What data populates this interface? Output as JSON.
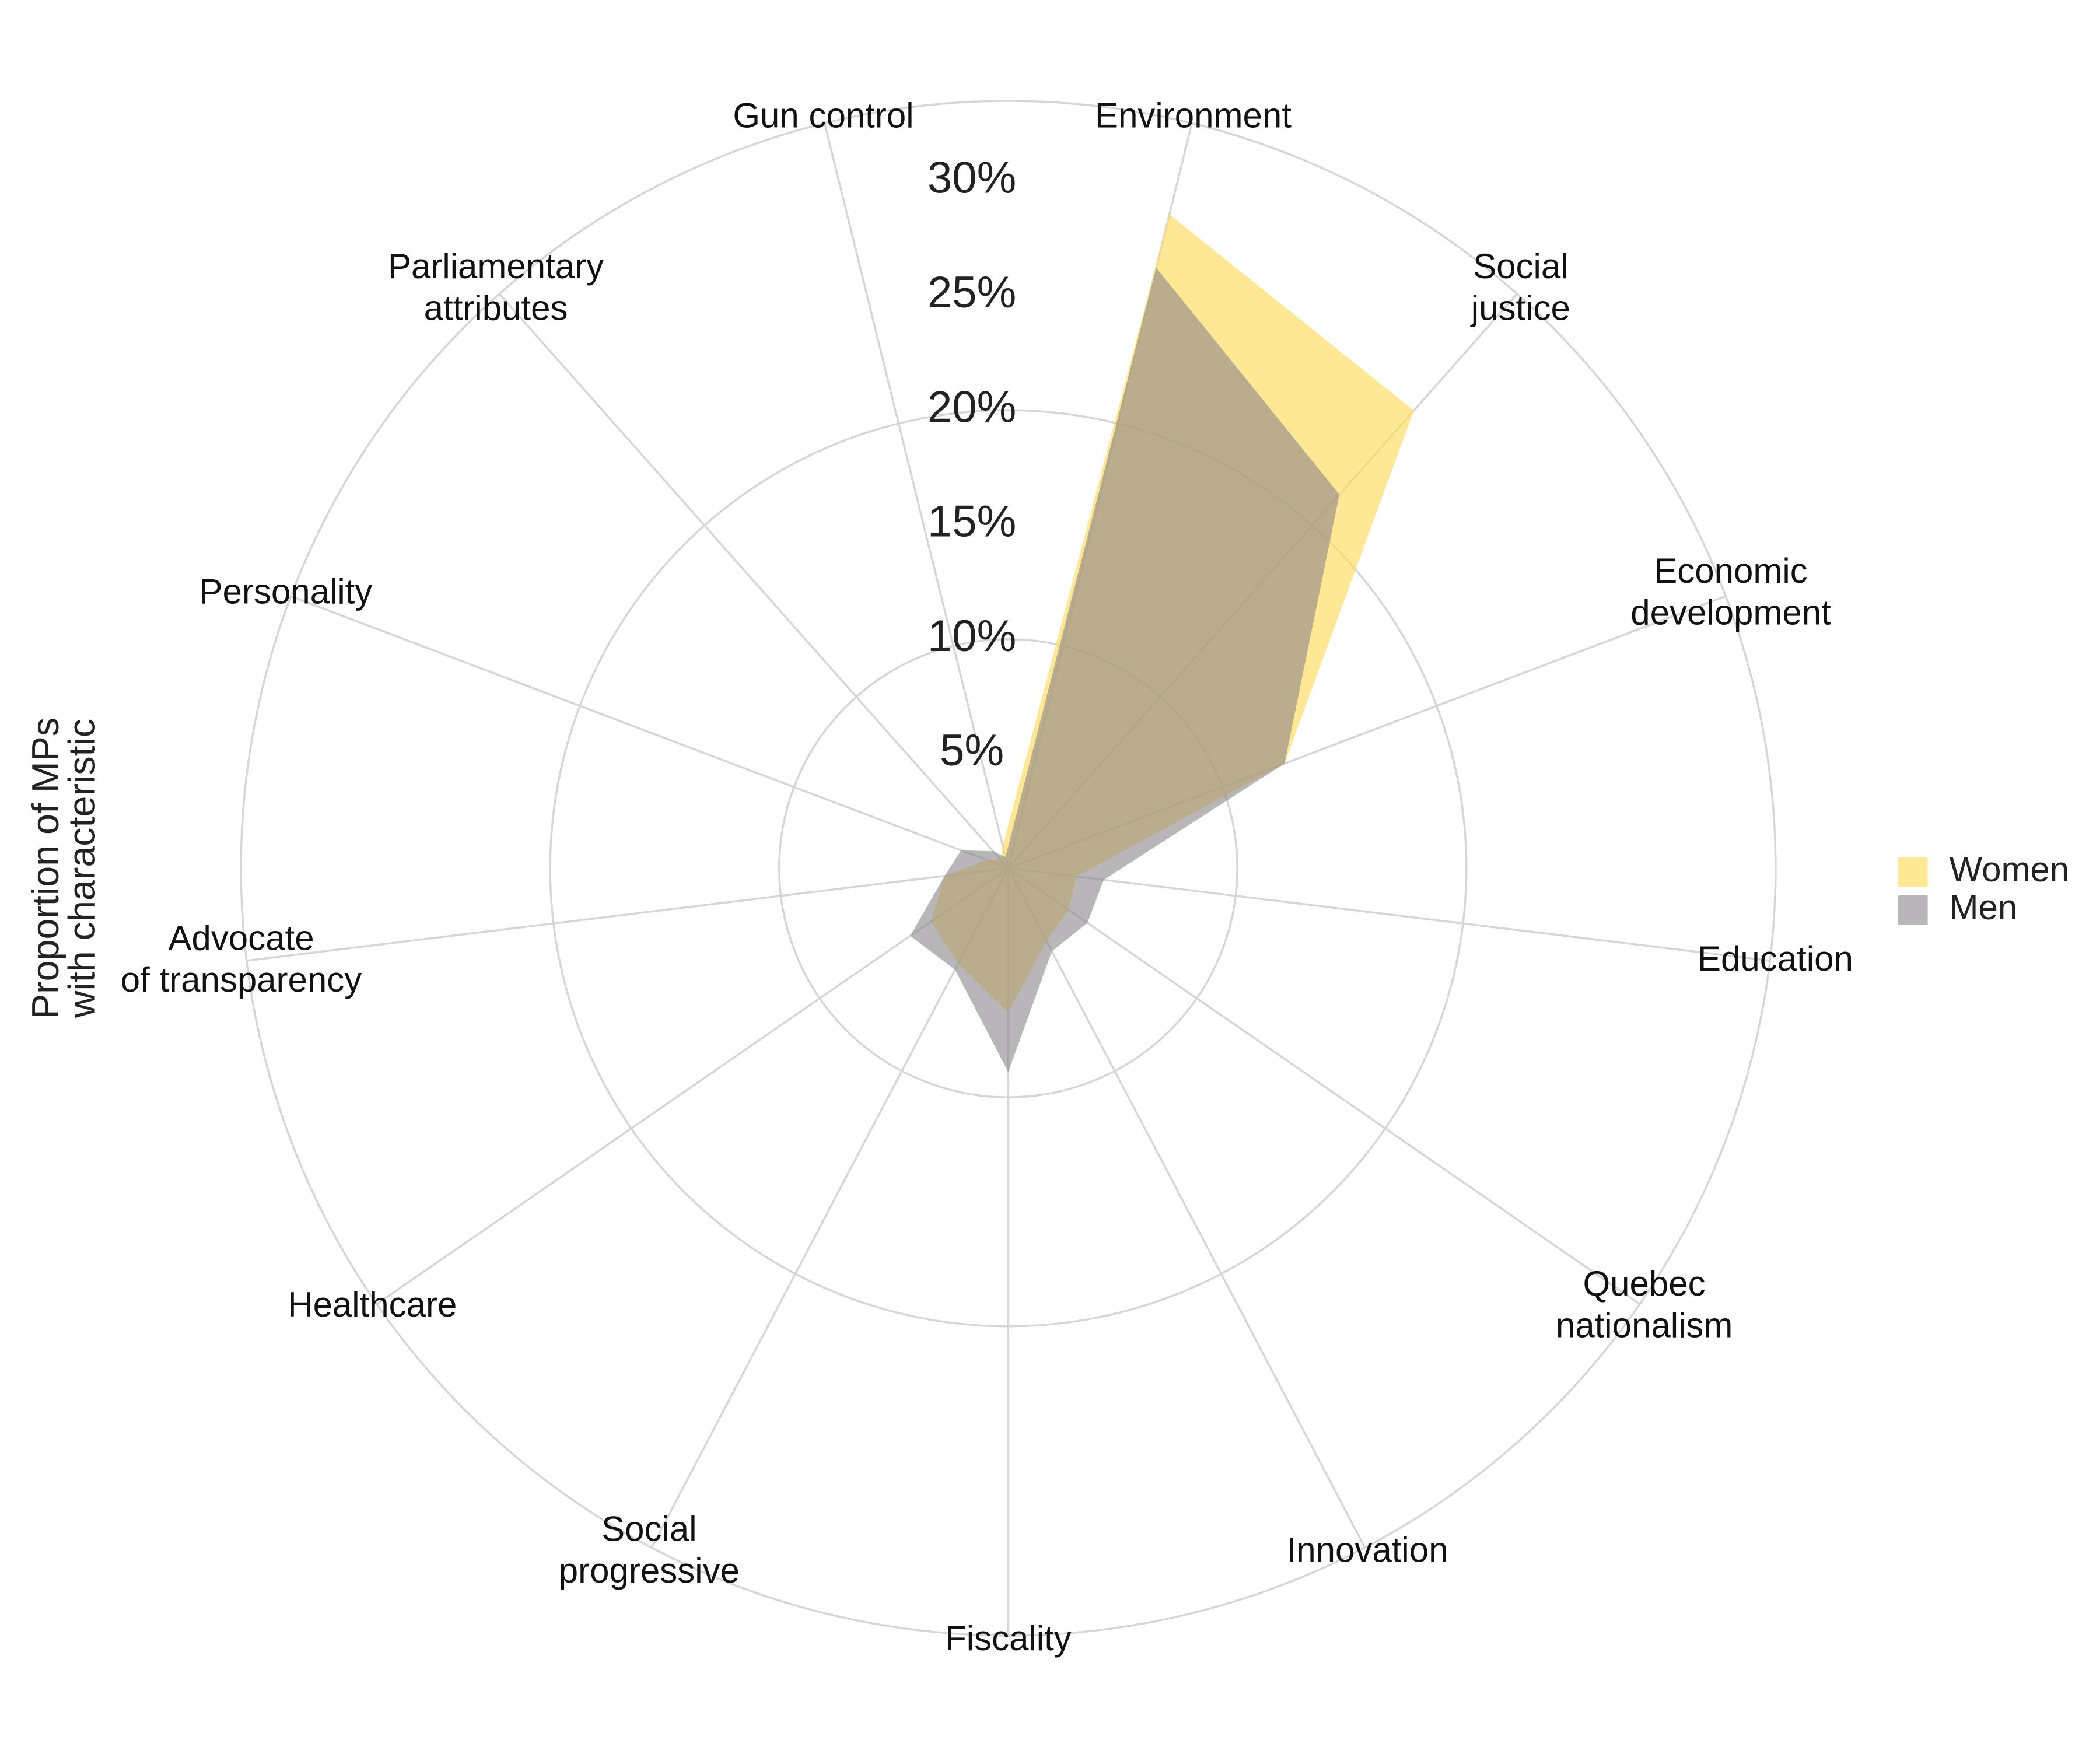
{
  "chart_data": {
    "type": "radar",
    "y_label": [
      "Proportion of MPs",
      "with characteristic"
    ],
    "categories": [
      "Environment",
      "Social\njustice",
      "Economic\ndevelopment",
      "Education",
      "Quebec\nnationalism",
      "Innovation",
      "Fiscality",
      "Social\nprogressive",
      "Healthcare",
      "Advocate\nof transparency",
      "Personality",
      "Parliamentary\nattributes",
      "Gun control"
    ],
    "series": [
      {
        "name": "Women",
        "color": "#fddc5c",
        "values": [
          29.4,
          26.7,
          12.9,
          3.0,
          3.2,
          3.6,
          6.3,
          4.7,
          4.1,
          2.8,
          1.0,
          0.5,
          1.0
        ]
      },
      {
        "name": "Men",
        "color": "#8a868a",
        "values": [
          27.0,
          21.8,
          12.9,
          4.2,
          4.2,
          4.1,
          8.9,
          5.0,
          5.2,
          2.8,
          2.2,
          1.0,
          0.5
        ]
      }
    ],
    "ylim": [
      0,
      33.5
    ],
    "yticks": [
      {
        "value": 5,
        "label": "5%"
      },
      {
        "value": 10,
        "label": "10%"
      },
      {
        "value": 15,
        "label": "15%"
      },
      {
        "value": 20,
        "label": "20%"
      },
      {
        "value": 25,
        "label": "25%"
      },
      {
        "value": 30,
        "label": "30%"
      }
    ],
    "grid_circles": [
      10,
      20
    ]
  }
}
